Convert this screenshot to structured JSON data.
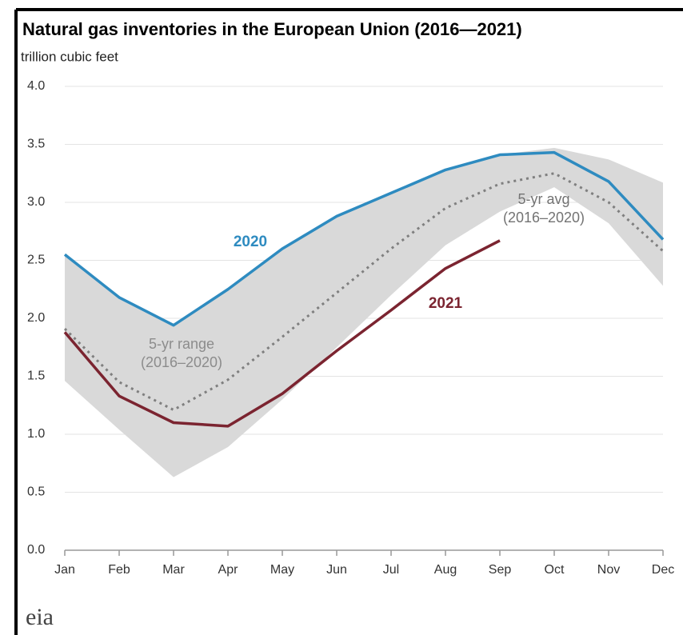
{
  "chart_data": {
    "type": "line",
    "title": "Natural gas inventories in the European Union (2016—2021)",
    "subtitle": "trillion cubic feet",
    "categories": [
      "Jan",
      "Feb",
      "Mar",
      "Apr",
      "May",
      "Jun",
      "Jul",
      "Aug",
      "Sep",
      "Oct",
      "Nov",
      "Dec"
    ],
    "ylim": [
      0,
      4
    ],
    "yticks": [
      {
        "value": 0,
        "label": "0.0"
      },
      0.5,
      {
        "value": 1,
        "label": "1.0"
      },
      1.5,
      {
        "value": 2,
        "label": "2.0"
      },
      2.5,
      {
        "value": 3,
        "label": "3.0"
      },
      3.5,
      {
        "value": 4,
        "label": "4.0"
      }
    ],
    "grid": true,
    "band": {
      "color": "#d9d9d9",
      "upper": [
        2.55,
        2.18,
        1.94,
        2.25,
        2.6,
        2.88,
        3.08,
        3.28,
        3.41,
        3.47,
        3.37,
        3.17
      ],
      "lower": [
        1.46,
        1.04,
        0.63,
        0.89,
        1.3,
        1.75,
        2.2,
        2.63,
        2.92,
        3.13,
        2.82,
        2.28
      ]
    },
    "series": [
      {
        "color": "#7f7f7f",
        "dash": true,
        "values": [
          1.91,
          1.45,
          1.21,
          1.47,
          1.84,
          2.22,
          2.6,
          2.95,
          3.16,
          3.25,
          3.0,
          2.58
        ]
      },
      {
        "name": "2020",
        "color": "#2e8bc0",
        "values": [
          2.55,
          2.18,
          1.94,
          2.25,
          2.6,
          2.88,
          3.08,
          3.28,
          3.41,
          3.43,
          3.18,
          2.68
        ]
      },
      {
        "name": "2021",
        "color": "#7b2430",
        "values": [
          1.88,
          1.33,
          1.1,
          1.07,
          1.35,
          1.72,
          2.07,
          2.43,
          2.67,
          null,
          null,
          null
        ]
      }
    ],
    "annotations": [
      {
        "lines": [
          "5-yr range",
          "(2016–2020)"
        ],
        "color": "#8c8c8c"
      },
      {
        "lines": [
          "5-yr avg",
          "(2016–2020)"
        ],
        "color": "#737373"
      }
    ],
    "source_logo": "eia"
  }
}
